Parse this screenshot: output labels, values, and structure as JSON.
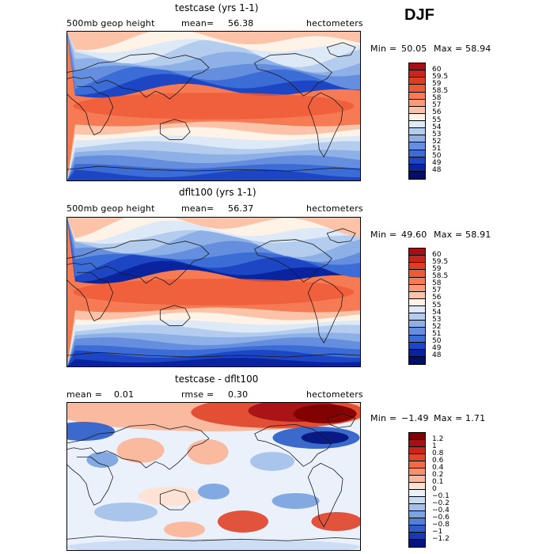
{
  "season": "DJF",
  "panels": [
    {
      "title": "testcase (yrs 1-1)",
      "field": "500mb geop height",
      "mean_label": "mean=",
      "mean": "56.38",
      "units": "hectometers",
      "min_label": "Min =",
      "min": "50.05",
      "max_label": "Max =",
      "max": "58.94"
    },
    {
      "title": "dflt100 (yrs 1-1)",
      "field": "500mb geop height",
      "mean_label": "mean=",
      "mean": "56.37",
      "units": "hectometers",
      "min_label": "Min =",
      "min": "49.60",
      "max_label": "Max =",
      "max": "58.91"
    },
    {
      "title": "testcase - dflt100",
      "mean_label": "mean =",
      "mean": "0.01",
      "rmse_label": "rmse =",
      "rmse": "0.30",
      "units": "hectometers",
      "min_label": "Min =",
      "min": "−1.49",
      "max_label": "Max =",
      "max": "1.71"
    }
  ],
  "legend_abs": {
    "ticks": [
      "60",
      "59.5",
      "59",
      "58.5",
      "58",
      "57",
      "56",
      "55",
      "54",
      "53",
      "52",
      "51",
      "50",
      "49",
      "48"
    ],
    "colors": [
      "#a50f15",
      "#c8261c",
      "#de3d22",
      "#ef5a36",
      "#f67a54",
      "#fb9a78",
      "#fcc3a8",
      "#fff2e6",
      "#dde9f6",
      "#b4cdee",
      "#8db0e6",
      "#658fde",
      "#3c6cd6",
      "#1c46c4",
      "#0a24a0",
      "#000f6e"
    ]
  },
  "legend_diff": {
    "ticks": [
      "1.2",
      "1",
      "0.8",
      "0.6",
      "0.4",
      "0.2",
      "0.1",
      "0",
      "−0.1",
      "−0.2",
      "−0.4",
      "−0.6",
      "−0.8",
      "−1",
      "−1.2"
    ],
    "colors": [
      "#7f0000",
      "#a50f15",
      "#c8261c",
      "#e0452b",
      "#f06a46",
      "#f7906c",
      "#fbb598",
      "#fde2d2",
      "#eaf1fb",
      "#c9dbf3",
      "#a3c1ea",
      "#7aa3e0",
      "#4f82d6",
      "#2d5ec8",
      "#1838ae",
      "#06147e"
    ]
  },
  "chart_data": [
    {
      "type": "heatmap",
      "title": "testcase (yrs 1-1)",
      "subtitle": "500mb geop height",
      "units": "hectometers",
      "mean": 56.38,
      "min": 50.05,
      "max": 58.94,
      "zlevels": [
        48,
        49,
        50,
        51,
        52,
        53,
        54,
        55,
        56,
        57,
        58,
        58.5,
        59,
        59.5,
        60
      ],
      "description_bands": "lat profile high in tropics (~58.5), low at poles (~49-50)"
    },
    {
      "type": "heatmap",
      "title": "dflt100 (yrs 1-1)",
      "subtitle": "500mb geop height",
      "units": "hectometers",
      "mean": 56.37,
      "min": 49.6,
      "max": 58.91,
      "zlevels": [
        48,
        49,
        50,
        51,
        52,
        53,
        54,
        55,
        56,
        57,
        58,
        58.5,
        59,
        59.5,
        60
      ]
    },
    {
      "type": "heatmap",
      "title": "testcase - dflt100",
      "units": "hectometers",
      "mean": 0.01,
      "rmse": 0.3,
      "min": -1.49,
      "max": 1.71,
      "zlevels": [
        -1.2,
        -1,
        -0.8,
        -0.6,
        -0.4,
        -0.2,
        -0.1,
        0,
        0.1,
        0.2,
        0.4,
        0.6,
        0.8,
        1,
        1.2
      ]
    }
  ]
}
